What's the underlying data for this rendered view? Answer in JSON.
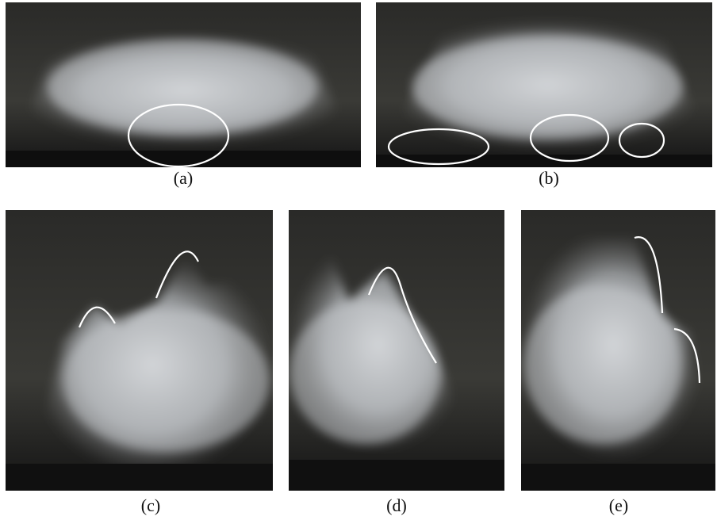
{
  "panels": [
    {
      "label": "(a)"
    },
    {
      "label": "(b)"
    },
    {
      "label": "(c)"
    },
    {
      "label": "(d)"
    },
    {
      "label": "(e)"
    }
  ]
}
